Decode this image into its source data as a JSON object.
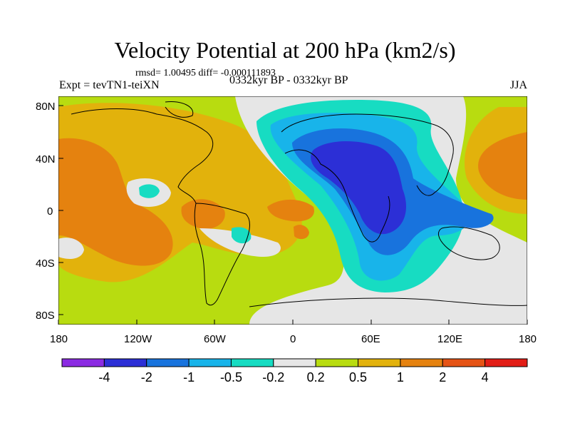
{
  "title": "Velocity Potential at 200 hPa (km2/s)",
  "stats_line": "rmsd= 1.00495 diff= -0.000111893",
  "experiment": "Expt = tevTN1-teiXN",
  "period": "0332kyr BP - 0332kyr BP",
  "season": "JJA",
  "axes": {
    "lat_ticks": [
      "80N",
      "40N",
      "0",
      "40S",
      "80S"
    ],
    "lon_ticks": [
      "180",
      "120W",
      "60W",
      "0",
      "60E",
      "120E",
      "180"
    ]
  },
  "colorbar": {
    "colors": [
      "#8b2be2",
      "#2c2fd6",
      "#1873dd",
      "#18b4ea",
      "#17dcc2",
      "#e6e6e6",
      "#b8dc10",
      "#e2b20c",
      "#e5820f",
      "#e55315",
      "#e21d16"
    ],
    "labels": [
      "-4",
      "-2",
      "-1",
      "-0.5",
      "-0.2",
      "0.2",
      "0.5",
      "1",
      "2",
      "4"
    ]
  },
  "map_fields": {
    "background": "#b8dc10",
    "coastline_color": "#000000"
  }
}
